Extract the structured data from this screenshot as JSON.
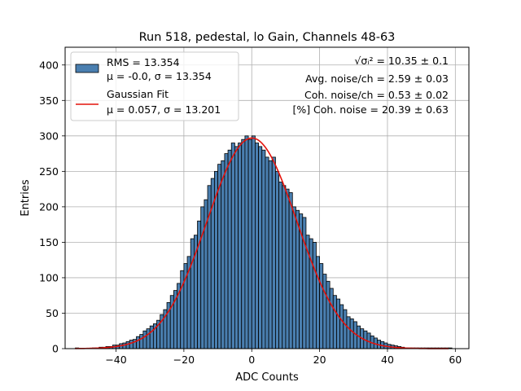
{
  "chart_data": {
    "type": "bar",
    "title": "Run 518, pedestal, lo Gain, Channels 48-63",
    "xlabel": "ADC Counts",
    "ylabel": "Entries",
    "xlim": [
      -55,
      64
    ],
    "ylim": [
      0,
      425
    ],
    "grid": true,
    "x_ticks": [
      -40,
      -20,
      0,
      20,
      40,
      60
    ],
    "y_ticks": [
      0,
      50,
      100,
      150,
      200,
      250,
      300,
      350,
      400
    ],
    "legend_position": "top-left",
    "legend": [
      {
        "kind": "patch",
        "line1": "RMS = 13.354",
        "line2": "μ = -0.0, σ = 13.354",
        "color": "#4a7fb0"
      },
      {
        "kind": "line",
        "line1": "Gaussian Fit",
        "line2": "μ = 0.057, σ = 13.201",
        "color": "#e3120b"
      }
    ],
    "annotations": [
      "√σᵢ² = 10.35 ± 0.1",
      "Avg. noise/ch = 2.59 ± 0.03",
      "Coh. noise/ch = 0.53 ± 0.02",
      "[%] Coh. noise = 20.39 ± 0.63"
    ],
    "series": [
      {
        "kind": "histogram",
        "bin_start": -52,
        "bin_width": 1,
        "color": "#4a7fb0",
        "edge_color": "#000000",
        "values": [
          1,
          0,
          0,
          0,
          0,
          1,
          1,
          2,
          2,
          3,
          3,
          5,
          5,
          7,
          8,
          10,
          12,
          13,
          17,
          20,
          25,
          28,
          32,
          35,
          40,
          48,
          55,
          65,
          75,
          82,
          92,
          110,
          120,
          130,
          155,
          160,
          180,
          200,
          210,
          230,
          240,
          250,
          260,
          265,
          275,
          280,
          290,
          285,
          290,
          295,
          300,
          295,
          300,
          290,
          285,
          280,
          270,
          265,
          270,
          250,
          235,
          230,
          225,
          220,
          200,
          195,
          190,
          185,
          160,
          155,
          150,
          130,
          120,
          105,
          95,
          85,
          75,
          70,
          62,
          55,
          45,
          42,
          38,
          32,
          28,
          25,
          22,
          18,
          15,
          12,
          10,
          8,
          6,
          5,
          4,
          3,
          2,
          1,
          1,
          1,
          1,
          1,
          1,
          1,
          1,
          1,
          1,
          1,
          1,
          1,
          1
        ]
      }
    ],
    "fit": {
      "mu": 0.057,
      "sigma": 13.201,
      "amplitude": 297,
      "x_range": [
        -52,
        58
      ],
      "color": "#e3120b"
    }
  }
}
